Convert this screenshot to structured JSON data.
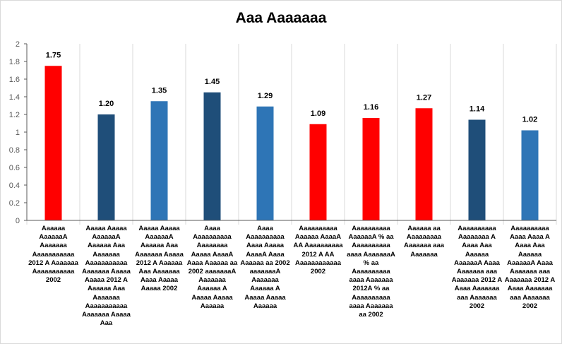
{
  "chart_data": {
    "type": "bar",
    "title": "Aaa Aaaaaaa",
    "xlabel": "",
    "ylabel": "",
    "ylim": [
      0,
      2
    ],
    "yticks": [
      0,
      0.2,
      0.4,
      0.6,
      0.8,
      1,
      1.2,
      1.4,
      1.6,
      1.8,
      2
    ],
    "ytick_labels": [
      "0",
      "0.2",
      "0.4",
      "0.6",
      "0.8",
      "1",
      "1.2",
      "1.4",
      "1.6",
      "1.8",
      "2"
    ],
    "grid": "vertical",
    "legend": "none",
    "categories": [
      "Aaaaaa AaaaaaA Aaaaaaa Aaaaaaaaaaa 2012 A Aaaaaaa Aaaaaaaaaaa 2002",
      "Aaaaa Aaaaa AaaaaaA Aaaaaa Aaa Aaaaaaa Aaaaaaaaaaa Aaaaaaa Aaaaa Aaaaa 2012 A Aaaaaa Aaa Aaaaaaa Aaaaaaaaaaa Aaaaaaa Aaaaa Aaa",
      "Aaaaa Aaaaa AaaaaaA Aaaaaa Aaa Aaaaaaa Aaaaa 2012 A Aaaaaa Aaa Aaaaaaa Aaaa Aaaaa Aaaaa 2002",
      "Aaaa Aaaaaaaaaa Aaaaaaaa Aaaaa AaaaA Aaaa Aaaaaa aa 2002 aaaaaaaA Aaaaaaa Aaaaaa A Aaaaa Aaaaa Aaaaaa",
      "Aaaa Aaaaaaaaaa Aaaa Aaaaa AaaaA Aaaa Aaaaaa aa 2002 aaaaaaaA Aaaaaaa Aaaaaa A Aaaaa Aaaaa Aaaaaa",
      "Aaaaaaaaaa Aaaaaa AaaaA AA Aaaaaaaaaa 2012 A AA Aaaaaaaaaaaa 2002",
      "Aaaaaaaaaa AaaaaaA % aa Aaaaaaaaaa aaaa AaaaaaaA % aa Aaaaaaaaaa aaaa Aaaaaaa 2012A % aa Aaaaaaaaaa aaaa Aaaaaaa aa 2002",
      "Aaaaaa aa Aaaaaaaaa Aaaaaaa aaa Aaaaaaa",
      "Aaaaaaaaaa Aaaaaaaa A Aaaa Aaa Aaaaaa AaaaaaA Aaaa Aaaaaaa aaa Aaaaaaa 2012 A Aaaa Aaaaaaa aaa Aaaaaaa 2002",
      "Aaaaaaaaaa Aaaa Aaaa A Aaaa Aaa Aaaaaa AaaaaaA Aaaa Aaaaaaa aaa Aaaaaaa 2012 A Aaaa Aaaaaaa aaa Aaaaaaa 2002"
    ],
    "values": [
      1.75,
      1.2,
      1.35,
      1.45,
      1.29,
      1.09,
      1.16,
      1.27,
      1.14,
      1.02
    ],
    "data_labels": [
      "1.75",
      "1.20",
      "1.35",
      "1.45",
      "1.29",
      "1.09",
      "1.16",
      "1.27",
      "1.14",
      "1.02"
    ],
    "bar_colors": [
      "#ff0000",
      "#1f4e79",
      "#2e75b6",
      "#1f4e79",
      "#2e75b6",
      "#ff0000",
      "#ff0000",
      "#ff0000",
      "#1f4e79",
      "#2e75b6"
    ],
    "axis_color": "#595959",
    "grid_color": "#d9d9d9"
  }
}
